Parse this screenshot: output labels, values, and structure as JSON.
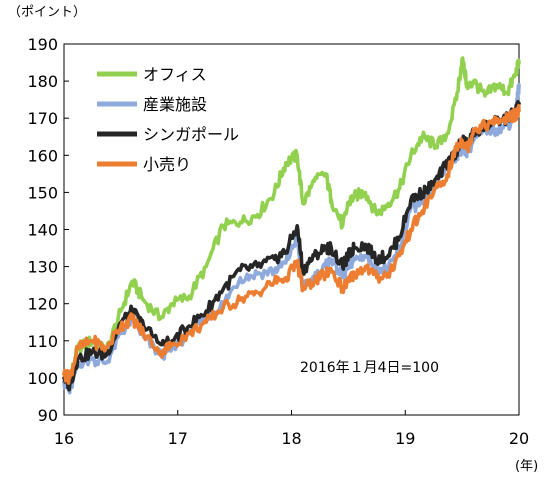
{
  "chart_data": {
    "type": "line",
    "y_unit_label": "（ポイント）",
    "x_unit_label": "(年)",
    "annotation": "2016年１月4日=100",
    "x_ticks": [
      "16",
      "17",
      "18",
      "19",
      "20"
    ],
    "x_tick_values": [
      2016,
      2017,
      2018,
      2019,
      2020
    ],
    "y_ticks": [
      "90",
      "100",
      "110",
      "120",
      "130",
      "140",
      "150",
      "160",
      "170",
      "180",
      "190"
    ],
    "xlim": [
      2016,
      2020
    ],
    "ylim": [
      90,
      190
    ],
    "grid": false,
    "legend_position": "top-left",
    "series": [
      {
        "name": "オフィス",
        "color": "#92d050",
        "x": [
          2016.0,
          2016.05,
          2016.12,
          2016.25,
          2016.37,
          2016.5,
          2016.6,
          2016.7,
          2016.85,
          2016.95,
          2017.1,
          2017.25,
          2017.4,
          2017.55,
          2017.7,
          2017.85,
          2017.95,
          2018.05,
          2018.1,
          2018.2,
          2018.3,
          2018.35,
          2018.45,
          2018.5,
          2018.55,
          2018.65,
          2018.75,
          2018.85,
          2018.95,
          2019.05,
          2019.15,
          2019.25,
          2019.35,
          2019.45,
          2019.5,
          2019.55,
          2019.6,
          2019.7,
          2019.8,
          2019.9,
          2019.97,
          2020.0
        ],
        "values": [
          101,
          99,
          108,
          110,
          107,
          118,
          126,
          121,
          116,
          120,
          122,
          130,
          141,
          142,
          144,
          150,
          158,
          160,
          147,
          153,
          155,
          148,
          141,
          147,
          149,
          150,
          144,
          147,
          151,
          160,
          165,
          163,
          164,
          175,
          186,
          178,
          180,
          176,
          179,
          177,
          182,
          185
        ]
      },
      {
        "name": "産業施設",
        "color": "#8ea9db",
        "x": [
          2016.0,
          2016.05,
          2016.12,
          2016.25,
          2016.37,
          2016.5,
          2016.6,
          2016.7,
          2016.85,
          2016.95,
          2017.1,
          2017.25,
          2017.4,
          2017.55,
          2017.7,
          2017.85,
          2017.95,
          2018.05,
          2018.1,
          2018.2,
          2018.3,
          2018.35,
          2018.45,
          2018.5,
          2018.55,
          2018.65,
          2018.75,
          2018.85,
          2018.95,
          2019.05,
          2019.15,
          2019.25,
          2019.35,
          2019.45,
          2019.5,
          2019.55,
          2019.6,
          2019.7,
          2019.8,
          2019.9,
          2019.97,
          2020.0
        ],
        "values": [
          99,
          96,
          104,
          105,
          104,
          112,
          116,
          111,
          106,
          108,
          112,
          116,
          120,
          127,
          128,
          129,
          131,
          138,
          124,
          127,
          130,
          132,
          127,
          130,
          132,
          133,
          130,
          129,
          135,
          146,
          147,
          151,
          156,
          160,
          162,
          161,
          164,
          167,
          167,
          168,
          171,
          179
        ]
      },
      {
        "name": "シンガポール",
        "color": "#262626",
        "x": [
          2016.0,
          2016.05,
          2016.12,
          2016.25,
          2016.37,
          2016.5,
          2016.6,
          2016.7,
          2016.85,
          2016.95,
          2017.1,
          2017.25,
          2017.4,
          2017.55,
          2017.7,
          2017.85,
          2017.95,
          2018.05,
          2018.1,
          2018.2,
          2018.3,
          2018.35,
          2018.45,
          2018.5,
          2018.55,
          2018.65,
          2018.75,
          2018.85,
          2018.95,
          2019.05,
          2019.15,
          2019.25,
          2019.35,
          2019.45,
          2019.5,
          2019.55,
          2019.6,
          2019.7,
          2019.8,
          2019.9,
          2019.97,
          2020.0
        ],
        "values": [
          100,
          98,
          105,
          107,
          106,
          115,
          118,
          114,
          109,
          110,
          114,
          118,
          124,
          129,
          130,
          132,
          134,
          141,
          129,
          133,
          135,
          135,
          130,
          133,
          135,
          136,
          132,
          133,
          138,
          148,
          150,
          152,
          157,
          161,
          164,
          163,
          166,
          168,
          169,
          170,
          172,
          174
        ]
      },
      {
        "name": "小売り",
        "color": "#ed7d31",
        "x": [
          2016.0,
          2016.05,
          2016.12,
          2016.25,
          2016.37,
          2016.5,
          2016.6,
          2016.7,
          2016.85,
          2016.95,
          2017.1,
          2017.25,
          2017.4,
          2017.55,
          2017.7,
          2017.85,
          2017.95,
          2018.05,
          2018.1,
          2018.2,
          2018.3,
          2018.35,
          2018.45,
          2018.5,
          2018.55,
          2018.65,
          2018.75,
          2018.85,
          2018.95,
          2019.05,
          2019.15,
          2019.25,
          2019.35,
          2019.45,
          2019.5,
          2019.55,
          2019.6,
          2019.7,
          2019.8,
          2019.9,
          2019.97,
          2020.0
        ],
        "values": [
          101,
          100,
          108,
          110,
          108,
          114,
          116,
          112,
          107,
          109,
          112,
          115,
          119,
          121,
          123,
          126,
          127,
          131,
          124,
          126,
          128,
          129,
          124,
          126,
          128,
          130,
          127,
          128,
          133,
          140,
          145,
          150,
          153,
          162,
          164,
          162,
          167,
          168,
          169,
          170,
          171,
          172
        ]
      }
    ]
  }
}
